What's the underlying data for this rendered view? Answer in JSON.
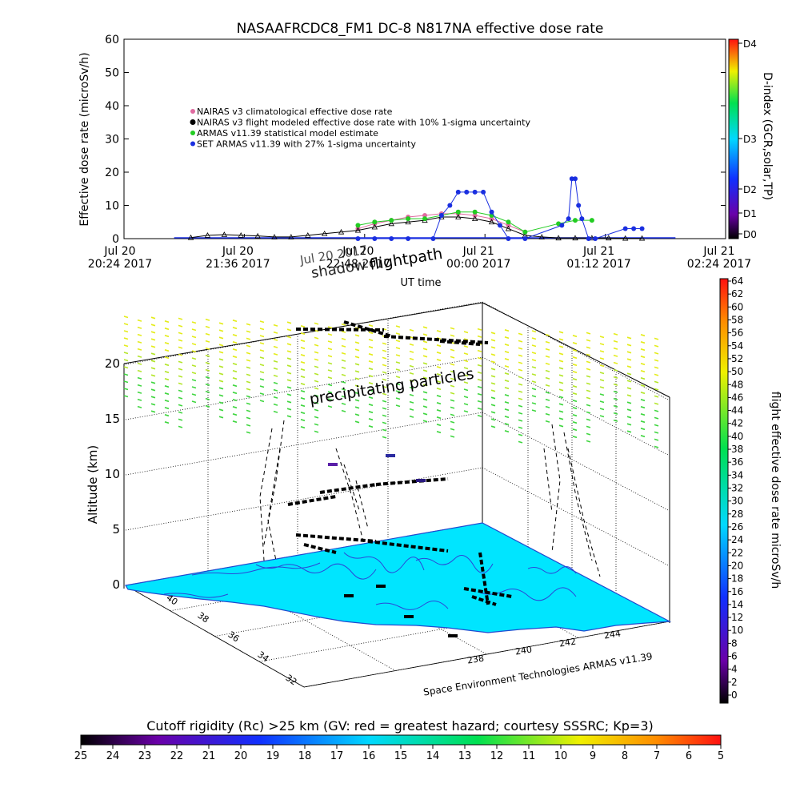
{
  "title": "NASAAFRCDC8_FM1 DC-8    N817NA effective dose rate",
  "top_chart": {
    "ylabel": "Effective dose rate (microSv/h)",
    "xlabel": "UT time",
    "yticks": [
      "0",
      "10",
      "20",
      "30",
      "40",
      "50",
      "60"
    ],
    "xticks": [
      {
        "l1": "Jul 20",
        "l2": "20:24 2017"
      },
      {
        "l1": "Jul 20",
        "l2": "21:36 2017"
      },
      {
        "l1": "Jul 20",
        "l2": "22:48 2017"
      },
      {
        "l1": "Jul 21",
        "l2": "00:00 2017"
      },
      {
        "l1": "Jul 21",
        "l2": "01:12 2017"
      },
      {
        "l1": "Jul 21",
        "l2": "02:24 2017"
      }
    ],
    "legend": [
      "NAIRAS v3 climatological effective dose rate",
      "NAIRAS v3 flight modeled effective dose rate with 10% 1-sigma uncertainty",
      "ARMAS v11.39 statistical model estimate",
      "SET ARMAS v11.39 with 27% 1-sigma uncertainty"
    ],
    "dindex_label": "D-index (GCR,solar,TP)",
    "dindex_ticks": [
      "D4",
      "D3",
      "D2",
      "D1",
      "D0"
    ]
  },
  "chart_data": [
    {
      "type": "scatter",
      "title": "NASAAFRCDC8_FM1 DC-8    N817NA effective dose rate",
      "xlabel": "UT time",
      "ylabel": "Effective dose rate (microSv/h)",
      "xlim": [
        0,
        360
      ],
      "ylim": [
        0,
        60
      ],
      "grid": false,
      "legend_position": "upper-left",
      "series": [
        {
          "name": "NAIRAS v3 climatological effective dose rate",
          "color": "#e06aa0",
          "x": [
            140,
            150,
            160,
            170,
            180,
            190,
            200,
            210,
            220,
            230,
            240
          ],
          "y": [
            3,
            4.5,
            5.5,
            6.5,
            7,
            7.5,
            7.5,
            7,
            6,
            4,
            2
          ]
        },
        {
          "name": "NAIRAS v3 flight modeled effective dose rate with 10% 1-sigma uncertainty",
          "color": "#000000",
          "x": [
            40,
            50,
            60,
            70,
            80,
            90,
            100,
            110,
            120,
            130,
            140,
            150,
            160,
            170,
            180,
            190,
            200,
            210,
            220,
            230,
            240,
            250,
            260,
            270,
            280,
            290,
            300,
            310
          ],
          "y": [
            0.3,
            1,
            1.2,
            1,
            0.8,
            0.5,
            0.5,
            1,
            1.5,
            2,
            2.5,
            3.5,
            4.5,
            5,
            5.5,
            6.5,
            6.5,
            6,
            5,
            3,
            1,
            0.5,
            0.2,
            0.2,
            0.2,
            0.2,
            0.1,
            0.1
          ]
        },
        {
          "name": "ARMAS v11.39 statistical model estimate",
          "color": "#22cc22",
          "x": [
            140,
            150,
            160,
            170,
            180,
            190,
            200,
            210,
            220,
            230,
            240,
            260,
            270,
            280
          ],
          "y": [
            4,
            5,
            5.5,
            6,
            6,
            7,
            8,
            8,
            7,
            5,
            2,
            4.5,
            5.5,
            5.5
          ]
        },
        {
          "name": "SET ARMAS v11.39 with 27% 1-sigma uncertainty",
          "color": "#1a2fe0",
          "x": [
            140,
            150,
            160,
            170,
            185,
            190,
            195,
            200,
            205,
            210,
            215,
            220,
            225,
            230,
            240,
            262,
            266,
            268,
            270,
            272,
            274,
            278,
            282,
            300,
            305,
            310
          ],
          "y": [
            0,
            0,
            0,
            0,
            0,
            7,
            10,
            14,
            14,
            14,
            14,
            8,
            4,
            0,
            0,
            4,
            6,
            18,
            18,
            10,
            6,
            0,
            0,
            3,
            3,
            3
          ]
        }
      ]
    },
    {
      "type": "heatmap",
      "title": "Cutoff rigidity (Rc) >25 km (GV: red = greatest hazard; courtesy SSSRC; Kp=3)",
      "xlabel": "Space Environment Technologies ARMAS v11.39",
      "ylabel": "Altitude (km)",
      "zlim": [
        0,
        20
      ],
      "x_ticks": [
        "238",
        "240",
        "242",
        "244"
      ],
      "y_ticks": [
        "32",
        "34",
        "36",
        "38",
        "40"
      ],
      "z_ticks": [
        "0",
        "5",
        "10",
        "15",
        "20"
      ],
      "annotations": [
        "shadow",
        "flightpath",
        "precipitating particles"
      ],
      "colorbar_rc_ticks": [
        "25",
        "24",
        "23",
        "22",
        "21",
        "20",
        "19",
        "18",
        "17",
        "16",
        "15",
        "14",
        "13",
        "12",
        "11",
        "10",
        "9",
        "8",
        "7",
        "6",
        "5"
      ],
      "colorbar_dose_ticks": [
        "64",
        "62",
        "60",
        "58",
        "56",
        "54",
        "52",
        "50",
        "48",
        "46",
        "44",
        "42",
        "40",
        "38",
        "36",
        "34",
        "32",
        "30",
        "28",
        "26",
        "24",
        "22",
        "20",
        "18",
        "16",
        "14",
        "12",
        "10",
        "8",
        "6",
        "4",
        "2",
        "0"
      ],
      "colorbar_dose_label": "flight effective dose rate microSv/h"
    }
  ],
  "map3d": {
    "ylabel": "Altitude (km)",
    "xlabel": "Space Environment Technologies ARMAS v11.39",
    "annotation_shadow": "shadow",
    "annotation_flightpath": "flightpath",
    "annotation_precip": "precipitating particles",
    "overlap_label": "Jul 20 2017",
    "alt_ticks": [
      "0",
      "5",
      "10",
      "15",
      "20"
    ],
    "lon_ticks": [
      "238",
      "240",
      "242",
      "244"
    ],
    "lat_ticks": [
      "32",
      "34",
      "36",
      "38",
      "40"
    ],
    "land_color": "#00e5ff"
  },
  "bottom_bar": {
    "title": "Cutoff rigidity (Rc) >25 km (GV: red = greatest hazard; courtesy SSSRC; Kp=3)",
    "ticks": [
      "25",
      "24",
      "23",
      "22",
      "21",
      "20",
      "19",
      "18",
      "17",
      "16",
      "15",
      "14",
      "13",
      "12",
      "11",
      "10",
      "9",
      "8",
      "7",
      "6",
      "5"
    ]
  },
  "right_bar": {
    "label": "flight effective dose rate microSv/h",
    "ticks": [
      "64",
      "62",
      "60",
      "58",
      "56",
      "54",
      "52",
      "50",
      "48",
      "46",
      "44",
      "42",
      "40",
      "38",
      "36",
      "34",
      "32",
      "30",
      "28",
      "26",
      "24",
      "22",
      "20",
      "18",
      "16",
      "14",
      "12",
      "10",
      "8",
      "6",
      "4",
      "2",
      "0"
    ]
  }
}
